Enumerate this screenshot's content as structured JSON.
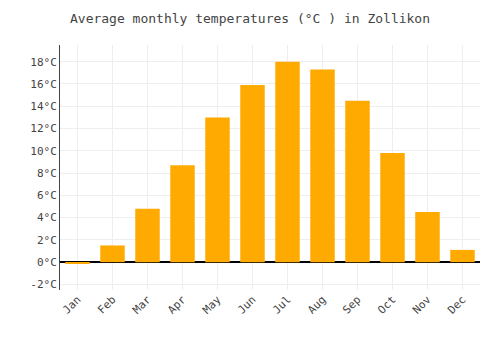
{
  "chart_data": {
    "type": "bar",
    "title": "Average monthly temperatures (°C ) in Zollikon",
    "categories": [
      "Jan",
      "Feb",
      "Mar",
      "Apr",
      "May",
      "Jun",
      "Jul",
      "Aug",
      "Sep",
      "Oct",
      "Nov",
      "Dec"
    ],
    "values": [
      -0.1,
      1.5,
      4.8,
      8.7,
      13.0,
      15.9,
      18.0,
      17.3,
      14.5,
      9.8,
      4.5,
      1.1
    ],
    "color": "#FFAA00",
    "ylim": [
      -2.5,
      19.5
    ],
    "yticks": [
      {
        "value": -2,
        "label": "-2°C"
      },
      {
        "value": 0,
        "label": "0°C"
      },
      {
        "value": 2,
        "label": "2°C"
      },
      {
        "value": 4,
        "label": "4°C"
      },
      {
        "value": 6,
        "label": "6°C"
      },
      {
        "value": 8,
        "label": "8°C"
      },
      {
        "value": 10,
        "label": "10°C"
      },
      {
        "value": 12,
        "label": "12°C"
      },
      {
        "value": 14,
        "label": "14°C"
      },
      {
        "value": 16,
        "label": "16°C"
      },
      {
        "value": 18,
        "label": "18°C"
      }
    ],
    "grid": true
  }
}
